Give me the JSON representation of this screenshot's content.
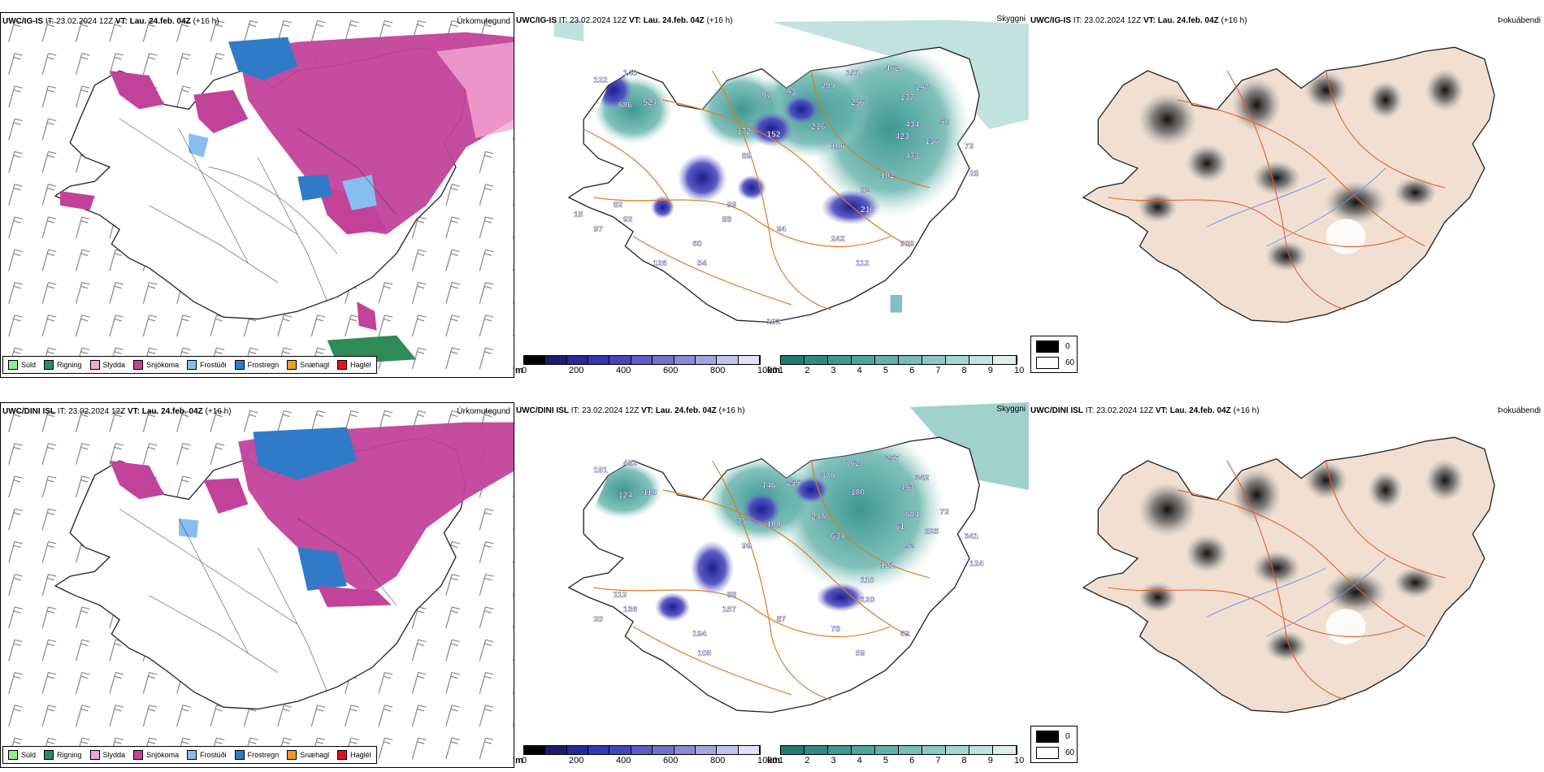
{
  "rows": [
    {
      "model": "UWC/IG-IS",
      "it_label": "IT:",
      "it_value": "23.02.2024 12Z",
      "vt_label": "VT:",
      "vt_value": "Lau. 24.feb. 04Z",
      "lead": "(+16 h)"
    },
    {
      "model": "UWC/DINI ISL",
      "it_label": "IT:",
      "it_value": "23.02.2024 12Z",
      "vt_label": "VT:",
      "vt_value": "Lau. 24.feb. 04Z",
      "lead": "(+16 h)"
    }
  ],
  "panel_names": {
    "precip_type": "Úrkomutegund",
    "visibility": "Skyggni",
    "fog": "Þokuábendi"
  },
  "precip_legend": [
    {
      "label": "Súld",
      "color": "#90ee90"
    },
    {
      "label": "Rigning",
      "color": "#2e8b57"
    },
    {
      "label": "Slydda",
      "color": "#f4a7d3"
    },
    {
      "label": "Snjókoma",
      "color": "#c2429a"
    },
    {
      "label": "Frostúði",
      "color": "#87bdf0"
    },
    {
      "label": "Frostregn",
      "color": "#2f7bc7"
    },
    {
      "label": "Snæhagl",
      "color": "#f39a25"
    },
    {
      "label": "Haglél",
      "color": "#e8101a"
    }
  ],
  "ceiling_scale": {
    "unit": "m",
    "ticks": [
      "0",
      "200",
      "400",
      "600",
      "800",
      "1000"
    ],
    "colors": [
      "#000000",
      "#1c1c6e",
      "#28289a",
      "#3737b0",
      "#4646bb",
      "#5c5cc4",
      "#7171cc",
      "#8a8ad4",
      "#a5a5de",
      "#c4c4ea",
      "#e2e2f4"
    ]
  },
  "visibility_scale": {
    "unit": "km",
    "ticks": [
      "1",
      "2",
      "3",
      "4",
      "5",
      "6",
      "7",
      "8",
      "9",
      "10"
    ],
    "colors": [
      "#217a72",
      "#2e8a82",
      "#3d9890",
      "#4ea59d",
      "#62b1aa",
      "#78bdb6",
      "#8ec9c3",
      "#a6d5d0",
      "#c0e2de",
      "#dbefed"
    ]
  },
  "fog_legend": [
    {
      "label": "0",
      "color": "#000000"
    },
    {
      "label": "60",
      "color": "#ffffff"
    }
  ],
  "ceiling_labels": [
    [
      "122",
      "140",
      "686",
      "524",
      "97",
      "93",
      "299",
      "151",
      "256",
      "462",
      "197",
      "137",
      "434",
      "423",
      "58",
      "136",
      "72",
      "473",
      "102",
      "82",
      "28",
      "216",
      "99",
      "88",
      "60",
      "94",
      "242",
      "112",
      "909",
      "172",
      "152",
      "216",
      "106",
      "89",
      "92",
      "82",
      "54",
      "97",
      "126",
      "102",
      "15"
    ],
    [
      "191",
      "482",
      "124",
      "118",
      "146",
      "255",
      "370",
      "162",
      "180",
      "257",
      "342",
      "453",
      "604",
      "61",
      "72",
      "825",
      "341",
      "92",
      "121",
      "110",
      "124",
      "120",
      "88",
      "157",
      "194",
      "87",
      "78",
      "59",
      "69",
      "75",
      "108",
      "248",
      "634",
      "99",
      "136",
      "112",
      "105",
      "20"
    ]
  ]
}
